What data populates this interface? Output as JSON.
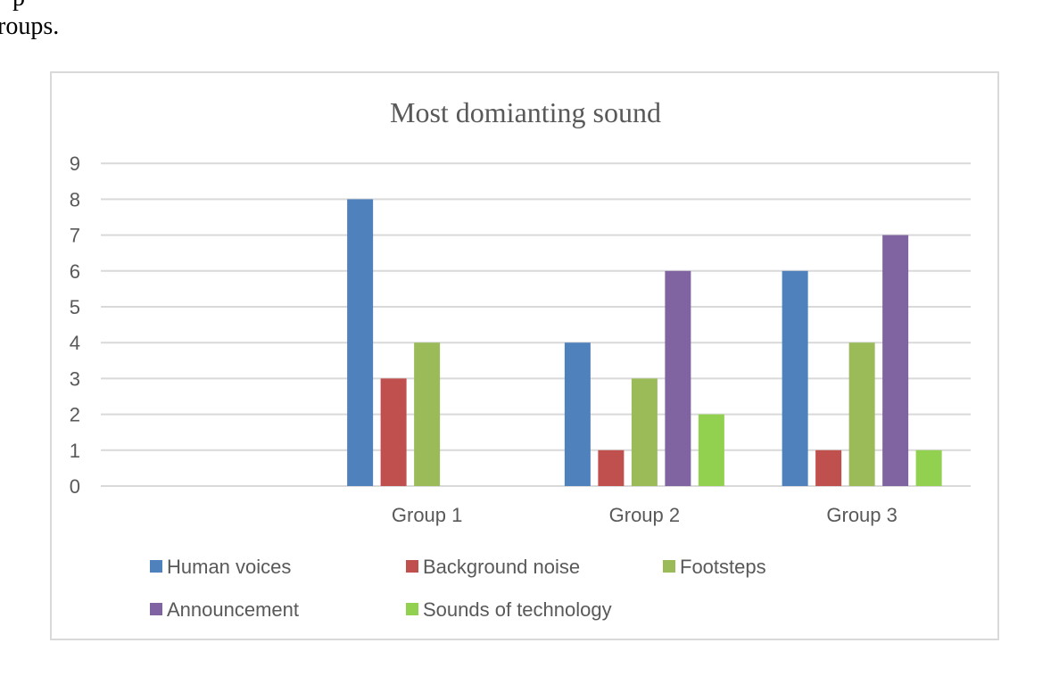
{
  "document": {
    "line1": "p",
    "line2": "roups."
  },
  "chart_data": {
    "type": "bar",
    "title": "Most domianting sound",
    "categories": [
      "",
      "Group 1",
      "Group 2",
      "Group 3"
    ],
    "series": [
      {
        "name": "Human voices",
        "color": "#4f81bd",
        "values": [
          null,
          8,
          4,
          6
        ]
      },
      {
        "name": "Background noise",
        "color": "#c0504d",
        "values": [
          null,
          3,
          1,
          1
        ]
      },
      {
        "name": "Footsteps",
        "color": "#9bbb59",
        "values": [
          null,
          4,
          3,
          4
        ]
      },
      {
        "name": "Announcement",
        "color": "#8064a2",
        "values": [
          null,
          null,
          6,
          7
        ]
      },
      {
        "name": "Sounds of technology",
        "color": "#92d050",
        "values": [
          null,
          null,
          2,
          1
        ]
      }
    ],
    "ylim": [
      0,
      9
    ],
    "yticks": [
      "0",
      "1",
      "2",
      "3",
      "4",
      "5",
      "6",
      "7",
      "8",
      "9"
    ],
    "grid": true,
    "legend": "bottom",
    "xlabel": "",
    "ylabel": ""
  }
}
